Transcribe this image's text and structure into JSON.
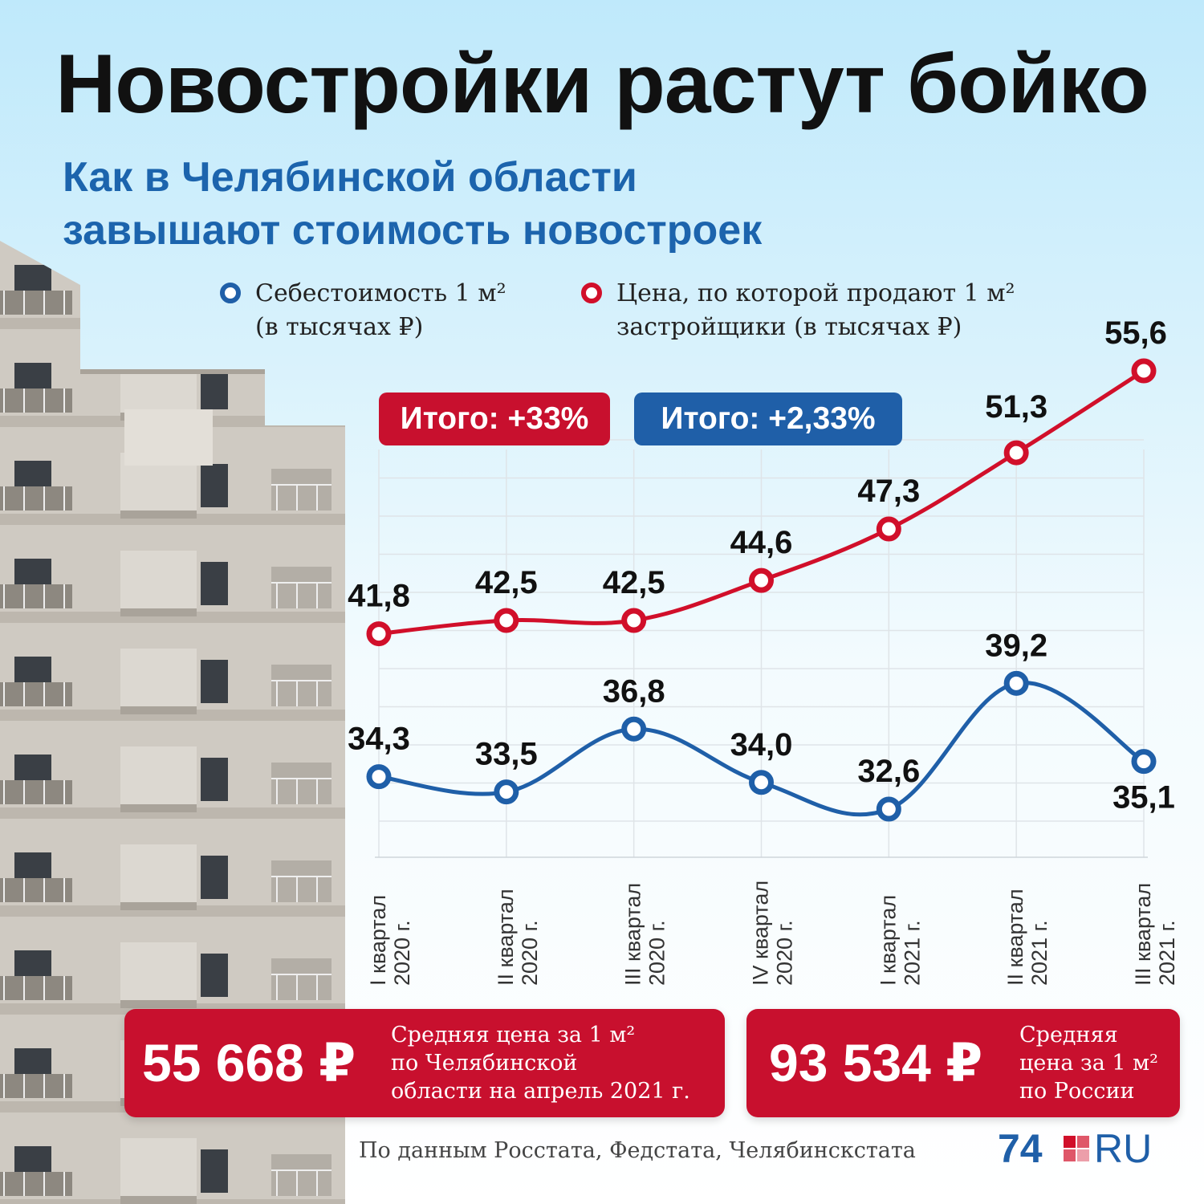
{
  "header": {
    "title": "Новостройки растут бойко",
    "subtitle_line1": "Как в Челябинской области",
    "subtitle_line2": "завышают стоимость новостроек"
  },
  "legend": {
    "cost": {
      "line1": "Себестоимость 1 м²",
      "line2": "(в тысячах ₽)"
    },
    "price": {
      "line1": "Цена, по которой продают 1 м²",
      "line2": "застройщики (в тысячах ₽)"
    }
  },
  "totals": {
    "price_total": "Итого: +33%",
    "cost_total": "Итого: +2,33%"
  },
  "chart_data": {
    "type": "line",
    "title": "Новостройки растут бойко",
    "categories": [
      [
        "I квартал",
        "2020 г."
      ],
      [
        "II квартал",
        "2020 г."
      ],
      [
        "III квартал",
        "2020 г."
      ],
      [
        "IV квартал",
        "2020 г."
      ],
      [
        "I квартал",
        "2021 г."
      ],
      [
        "II квартал",
        "2021 г."
      ],
      [
        "III квартал",
        "2021 г."
      ]
    ],
    "series": [
      {
        "name": "Цена, по которой продают 1 м² застройщики (в тысячах ₽)",
        "color": "#d10f2a",
        "values": [
          41.8,
          42.5,
          42.5,
          44.6,
          47.3,
          51.3,
          55.6
        ],
        "labels": [
          "41,8",
          "42,5",
          "42,5",
          "44,6",
          "47,3",
          "51,3",
          "55,6"
        ]
      },
      {
        "name": "Себестоимость 1 м² (в тысячах ₽)",
        "color": "#1f5fa8",
        "values": [
          34.3,
          33.5,
          36.8,
          34.0,
          32.6,
          39.2,
          35.1
        ],
        "labels": [
          "34,3",
          "33,5",
          "36,8",
          "34,0",
          "32,6",
          "39,2",
          "35,1"
        ]
      }
    ],
    "ylim": [
      30,
      57
    ],
    "grid": true,
    "xlabel": "",
    "ylabel": ""
  },
  "cards": {
    "region": {
      "value": "55 668 ₽",
      "desc": [
        "Средняя цена за 1 м²",
        "по Челябинской",
        "области на апрель 2021 г."
      ]
    },
    "russia": {
      "value": "93 534 ₽",
      "desc": [
        "Средняя",
        "цена за 1 м²",
        "по России"
      ]
    }
  },
  "footer": {
    "source": "По данным Росстата, Федстата, Челябинскстата",
    "logo_number": "74",
    "logo_text": "RU"
  },
  "colors": {
    "red": "#c8102e",
    "blue": "#1f5fa8",
    "subtitle": "#1c64ad"
  }
}
